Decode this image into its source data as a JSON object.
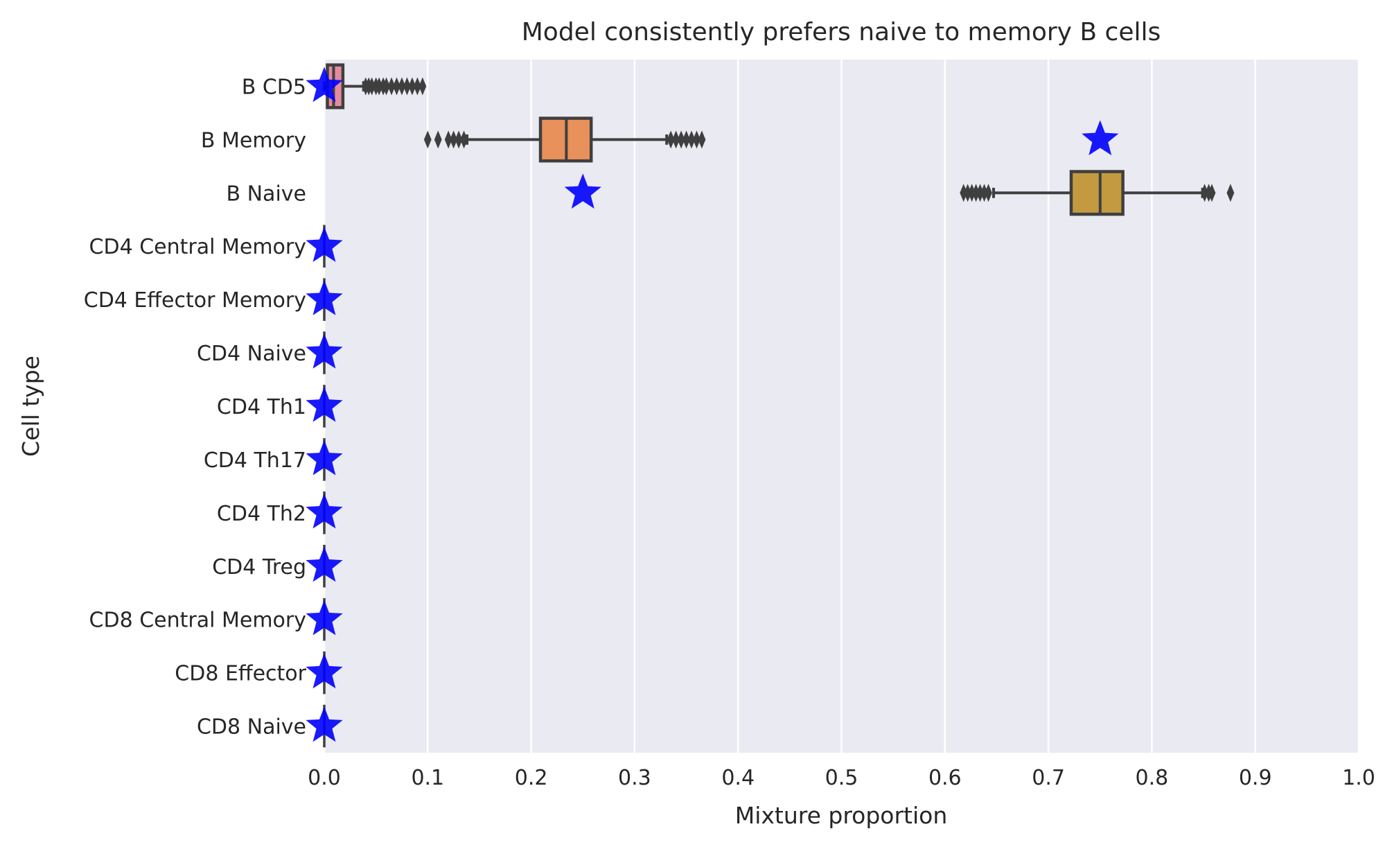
{
  "chart_data": {
    "type": "box",
    "title": "Model consistently prefers naive to memory B cells",
    "xlabel": "Mixture proportion",
    "ylabel": "Cell type",
    "xlim": [
      0.0,
      1.0
    ],
    "xticks": [
      "0.0",
      "0.1",
      "0.2",
      "0.3",
      "0.4",
      "0.5",
      "0.6",
      "0.7",
      "0.8",
      "0.9",
      "1.0"
    ],
    "grid": true,
    "categories": [
      "B CD5",
      "B Memory",
      "B Naive",
      "CD4 Central Memory",
      "CD4 Effector Memory",
      "CD4 Naive",
      "CD4 Th1",
      "CD4 Th17",
      "CD4 Th2",
      "CD4 Treg",
      "CD8 Central Memory",
      "CD8 Effector",
      "CD8 Naive"
    ],
    "boxes": [
      {
        "category": "B CD5",
        "whisker_low": 0.0,
        "q1": 0.003,
        "median": 0.009,
        "q3": 0.018,
        "whisker_high": 0.038,
        "outliers": [
          0.04,
          0.043,
          0.046,
          0.05,
          0.053,
          0.057,
          0.06,
          0.065,
          0.07,
          0.075,
          0.08,
          0.085,
          0.09,
          0.095
        ],
        "color": "#e58a9e"
      },
      {
        "category": "B Memory",
        "whisker_low": 0.138,
        "q1": 0.209,
        "median": 0.234,
        "q3": 0.258,
        "whisker_high": 0.331,
        "outliers": [
          0.1,
          0.11,
          0.12,
          0.125,
          0.13,
          0.135,
          0.335,
          0.34,
          0.345,
          0.35,
          0.355,
          0.36,
          0.365
        ],
        "color": "#e8915a"
      },
      {
        "category": "B Naive",
        "whisker_low": 0.647,
        "q1": 0.722,
        "median": 0.75,
        "q3": 0.772,
        "whisker_high": 0.849,
        "outliers": [
          0.618,
          0.622,
          0.626,
          0.63,
          0.634,
          0.638,
          0.642,
          0.851,
          0.855,
          0.858,
          0.876
        ],
        "color": "#c39a40"
      },
      {
        "category": "CD4 Central Memory",
        "whisker_low": 0.0,
        "q1": 0.0,
        "median": 0.0,
        "q3": 0.0,
        "whisker_high": 0.0,
        "outliers": [],
        "color": "#a0a53b"
      },
      {
        "category": "CD4 Effector Memory",
        "whisker_low": 0.0,
        "q1": 0.0,
        "median": 0.0,
        "q3": 0.0,
        "whisker_high": 0.0,
        "outliers": [],
        "color": "#6aaf4a"
      },
      {
        "category": "CD4 Naive",
        "whisker_low": 0.0,
        "q1": 0.0,
        "median": 0.0,
        "q3": 0.0,
        "whisker_high": 0.0,
        "outliers": [],
        "color": "#4bb08f"
      },
      {
        "category": "CD4 Th1",
        "whisker_low": 0.0,
        "q1": 0.0,
        "median": 0.0,
        "q3": 0.0,
        "whisker_high": 0.0,
        "outliers": [],
        "color": "#4eaeae"
      },
      {
        "category": "CD4 Th17",
        "whisker_low": 0.0,
        "q1": 0.0,
        "median": 0.0,
        "q3": 0.0,
        "whisker_high": 0.0,
        "outliers": [],
        "color": "#52abc4"
      },
      {
        "category": "CD4 Th2",
        "whisker_low": 0.0,
        "q1": 0.0,
        "median": 0.0,
        "q3": 0.0,
        "whisker_high": 0.0,
        "outliers": [],
        "color": "#5ea6dd"
      },
      {
        "category": "CD4 Treg",
        "whisker_low": 0.0,
        "q1": 0.0,
        "median": 0.0,
        "q3": 0.0,
        "whisker_high": 0.0,
        "outliers": [],
        "color": "#9c9ae8"
      },
      {
        "category": "CD8 Central Memory",
        "whisker_low": 0.0,
        "q1": 0.0,
        "median": 0.0,
        "q3": 0.0,
        "whisker_high": 0.0,
        "outliers": [],
        "color": "#cb8ee4"
      },
      {
        "category": "CD8 Effector",
        "whisker_low": 0.0,
        "q1": 0.0,
        "median": 0.0,
        "q3": 0.0,
        "whisker_high": 0.0,
        "outliers": [],
        "color": "#e486cf"
      },
      {
        "category": "CD8 Naive",
        "whisker_low": 0.0,
        "q1": 0.0,
        "median": 0.0,
        "q3": 0.0,
        "whisker_high": 0.0,
        "outliers": [],
        "color": "#e889b3"
      }
    ],
    "true_proportions": [
      {
        "category": "B CD5",
        "value": 0.0
      },
      {
        "category": "B Memory",
        "value": 0.75
      },
      {
        "category": "B Naive",
        "value": 0.25
      },
      {
        "category": "CD4 Central Memory",
        "value": 0.0
      },
      {
        "category": "CD4 Effector Memory",
        "value": 0.0
      },
      {
        "category": "CD4 Naive",
        "value": 0.0
      },
      {
        "category": "CD4 Th1",
        "value": 0.0
      },
      {
        "category": "CD4 Th17",
        "value": 0.0
      },
      {
        "category": "CD4 Th2",
        "value": 0.0
      },
      {
        "category": "CD4 Treg",
        "value": 0.0
      },
      {
        "category": "CD8 Central Memory",
        "value": 0.0
      },
      {
        "category": "CD8 Effector",
        "value": 0.0
      },
      {
        "category": "CD8 Naive",
        "value": 0.0
      }
    ],
    "colors": {
      "background": "#eaeaf2",
      "grid": "#ffffff",
      "box_edge": "#3f3f3f",
      "star": "#0000ff"
    }
  }
}
